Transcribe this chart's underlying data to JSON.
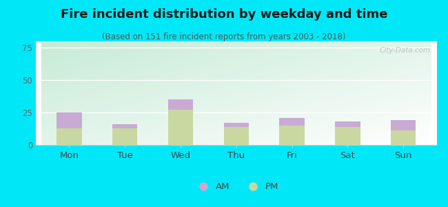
{
  "title": "Fire incident distribution by weekday and time",
  "subtitle": "(Based on 151 fire incident reports from years 2003 - 2018)",
  "categories": [
    "Mon",
    "Tue",
    "Wed",
    "Thu",
    "Fri",
    "Sat",
    "Sun"
  ],
  "pm_values": [
    13,
    13,
    27,
    14,
    15,
    14,
    11
  ],
  "am_values": [
    12,
    3,
    8,
    3,
    6,
    4,
    8
  ],
  "am_color": "#c9aad4",
  "pm_color": "#c8d8a0",
  "background_outer": "#00e8f8",
  "ylim": [
    0,
    80
  ],
  "yticks": [
    0,
    25,
    50,
    75
  ],
  "bar_width": 0.45,
  "title_fontsize": 13,
  "subtitle_fontsize": 8.5,
  "watermark": "City-Data.com"
}
